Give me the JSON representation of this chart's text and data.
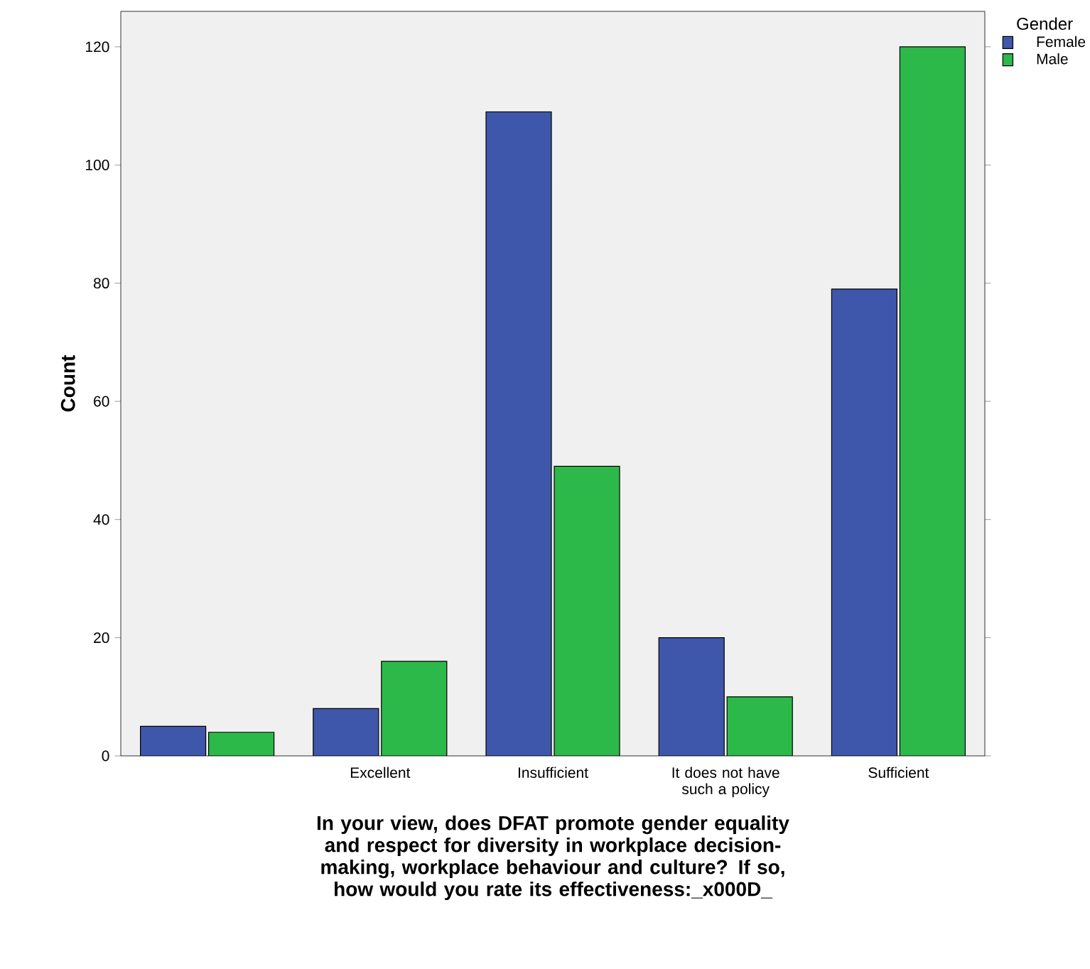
{
  "chart_data": {
    "type": "bar",
    "xlabel": "In your view, does DFAT promote gender equality and respect for diversity in workplace decision-making, workplace behaviour and culture? If so, how would you rate its effectiveness:_x000D_",
    "ylabel": "Count",
    "legend_title": "Gender",
    "categories": [
      null,
      "Excellent",
      "Insufficient",
      "It does not have such a policy",
      "Sufficient"
    ],
    "series": [
      {
        "name": "Female",
        "color": "#3f57aa",
        "values": [
          5,
          8,
          109,
          20,
          79
        ]
      },
      {
        "name": "Male",
        "color": "#2db84a",
        "values": [
          4,
          16,
          49,
          10,
          120
        ]
      }
    ],
    "ylim": [
      0,
      126
    ],
    "yticks": [
      0,
      20,
      40,
      60,
      80,
      100,
      120
    ],
    "grid": false,
    "legend": "top right"
  }
}
